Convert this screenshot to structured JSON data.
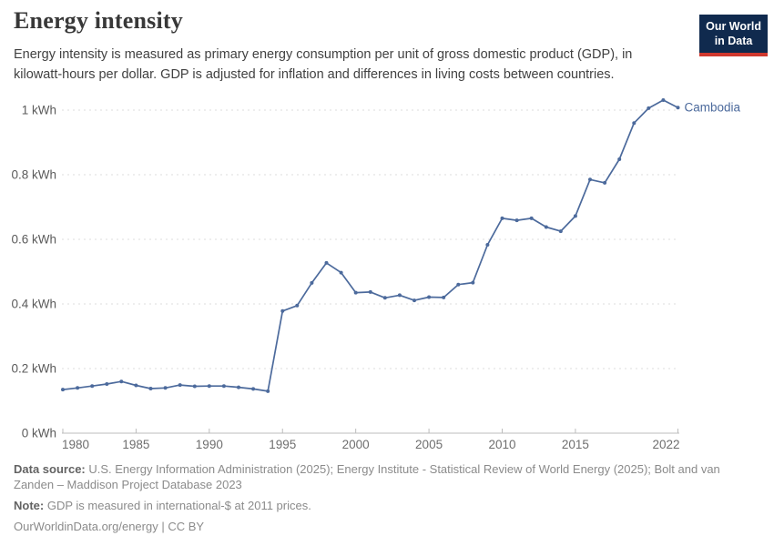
{
  "header": {
    "title": "Energy intensity",
    "subtitle": "Energy intensity is measured as primary energy consumption per unit of gross domestic product (GDP), in kilowatt-hours per dollar. GDP is adjusted for inflation and differences in living costs between countries.",
    "logo": {
      "line1": "Our World",
      "line2": "in Data"
    }
  },
  "chart_data": {
    "type": "line",
    "title": "Energy intensity",
    "unit": "kWh",
    "x": [
      1980,
      1981,
      1982,
      1983,
      1984,
      1985,
      1986,
      1987,
      1988,
      1989,
      1990,
      1991,
      1992,
      1993,
      1994,
      1995,
      1996,
      1997,
      1998,
      1999,
      2000,
      2001,
      2002,
      2003,
      2004,
      2005,
      2006,
      2007,
      2008,
      2009,
      2010,
      2011,
      2012,
      2013,
      2014,
      2015,
      2016,
      2017,
      2018,
      2019,
      2020,
      2021,
      2022
    ],
    "series": [
      {
        "name": "Cambodia",
        "color": "#4C6A9C",
        "values": [
          0.135,
          0.14,
          0.146,
          0.152,
          0.16,
          0.148,
          0.138,
          0.14,
          0.149,
          0.145,
          0.146,
          0.146,
          0.142,
          0.137,
          0.13,
          0.378,
          0.395,
          0.465,
          0.527,
          0.497,
          0.435,
          0.437,
          0.419,
          0.427,
          0.411,
          0.421,
          0.42,
          0.46,
          0.466,
          0.583,
          0.665,
          0.659,
          0.665,
          0.638,
          0.625,
          0.672,
          0.785,
          0.775,
          0.848,
          0.96,
          1.006,
          1.031,
          1.008
        ]
      }
    ],
    "xlim": [
      1980,
      2022
    ],
    "ylim": [
      0,
      1.05
    ],
    "xticks": [
      1980,
      1985,
      1990,
      1995,
      2000,
      2005,
      2010,
      2015,
      2022
    ],
    "yticks": [
      {
        "v": 0,
        "label": "0 kWh"
      },
      {
        "v": 0.2,
        "label": "0.2 kWh"
      },
      {
        "v": 0.4,
        "label": "0.4 kWh"
      },
      {
        "v": 0.6,
        "label": "0.6 kWh"
      },
      {
        "v": 0.8,
        "label": "0.8 kWh"
      },
      {
        "v": 1,
        "label": "1 kWh"
      }
    ],
    "grid": "horizontal-dashed",
    "legend": "end-of-line-label"
  },
  "footer": {
    "data_source_label": "Data source:",
    "data_source_text": " U.S. Energy Information Administration (2025); Energy Institute - Statistical Review of World Energy (2025); Bolt and van Zanden – Maddison Project Database 2023",
    "note_label": "Note:",
    "note_text": " GDP is measured in international-$ at 2011 prices.",
    "license_text": "OurWorldinData.org/energy | CC BY"
  },
  "colors": {
    "accent": "#4C6A9C",
    "logo_bg": "#102a4e",
    "logo_red": "#d0382e",
    "gridline": "#dedede",
    "axis": "#bcbcbc",
    "tick_text": "#6e6e6e"
  }
}
